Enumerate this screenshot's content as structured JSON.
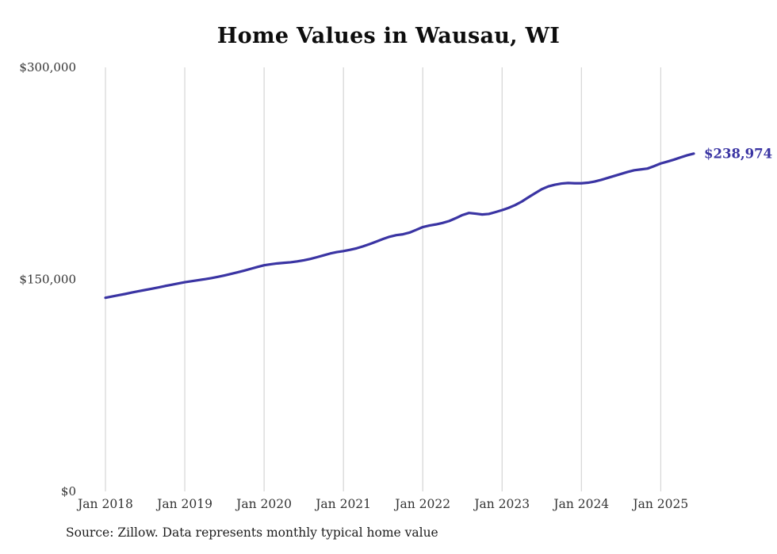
{
  "chart_data": {
    "type": "line",
    "title": "Home Values in Wausau, WI",
    "source_note": "Source: Zillow. Data represents monthly typical home value",
    "ylabel": "",
    "xlabel": "",
    "ylim": [
      0,
      300000
    ],
    "grid": "vertical-only",
    "legend": "none",
    "line_color": "#3a34a3",
    "grid_color": "#cccccc",
    "tick_color": "#333333",
    "end_label": "$238,974",
    "y_ticks": [
      {
        "value": 0,
        "label": "$0"
      },
      {
        "value": 150000,
        "label": "$150,000"
      },
      {
        "value": 300000,
        "label": "$300,000"
      }
    ],
    "x_ticks": [
      "Jan 2018",
      "Jan 2019",
      "Jan 2020",
      "Jan 2021",
      "Jan 2022",
      "Jan 2023",
      "Jan 2024",
      "Jan 2025"
    ],
    "x_tick_indices": [
      0,
      12,
      24,
      36,
      48,
      60,
      72,
      84
    ],
    "x_start": "Jan 2018",
    "x_end": "Jun 2025",
    "series": [
      {
        "name": "Monthly typical home value",
        "values": [
          137000,
          137900,
          138800,
          139700,
          140700,
          141600,
          142500,
          143400,
          144300,
          145300,
          146200,
          147100,
          148000,
          148700,
          149400,
          150100,
          150900,
          151800,
          152800,
          153900,
          155000,
          156200,
          157500,
          158800,
          160000,
          160700,
          161300,
          161700,
          162100,
          162700,
          163500,
          164500,
          165700,
          167000,
          168300,
          169300,
          170000,
          170900,
          172000,
          173400,
          175000,
          176800,
          178600,
          180200,
          181300,
          181900,
          183100,
          185000,
          187000,
          188100,
          188900,
          189900,
          191300,
          193300,
          195500,
          197000,
          196500,
          195900,
          196300,
          197600,
          199000,
          200600,
          202600,
          205100,
          208100,
          211000,
          213800,
          215800,
          217000,
          217800,
          218200,
          218000,
          218000,
          218400,
          219200,
          220400,
          221800,
          223200,
          224600,
          226000,
          227200,
          227800,
          228400,
          230100,
          232000,
          233300,
          234700,
          236300,
          237800,
          238974
        ]
      }
    ]
  }
}
